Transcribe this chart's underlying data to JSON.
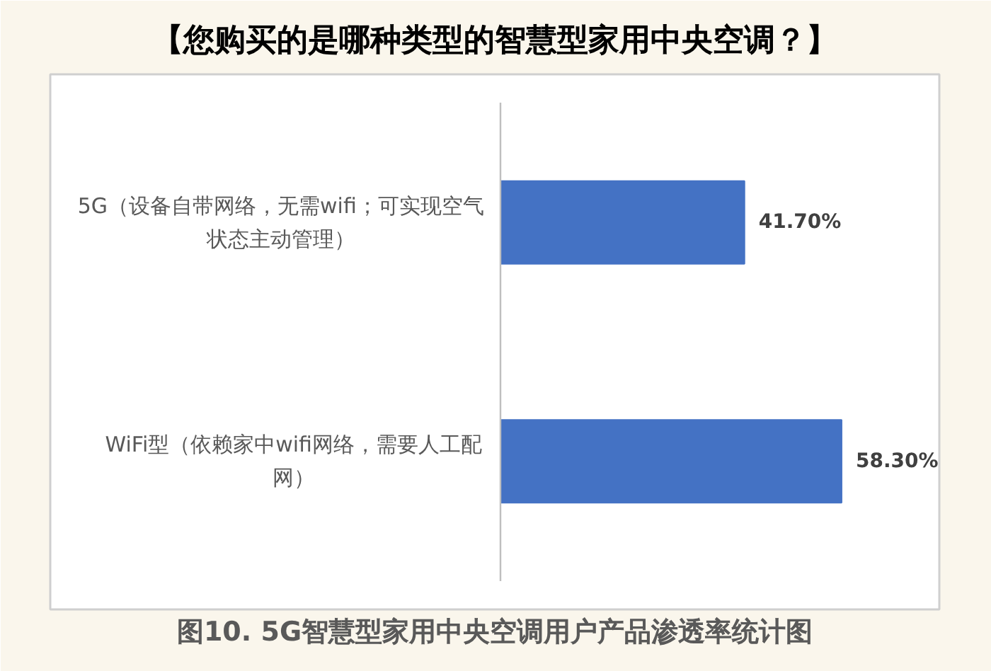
{
  "chart_data": {
    "type": "bar",
    "orientation": "horizontal",
    "title": "【您购买的是哪种类型的智慧型家用中央空调？】",
    "categories": [
      "5G（设备自带网络，无需wifi；可实现空气状态主动管理）",
      "WiFi型（依赖家中wifi网络，需要人工配网）"
    ],
    "values": [
      41.7,
      58.3
    ],
    "value_labels": [
      "41.70%",
      "58.30%"
    ],
    "color": "#4472c4",
    "xlim": [
      0,
      75
    ],
    "tick_labels": "y",
    "annotations": [
      "图10. 5G智慧型家用中央空调用户产品渗透率统计图"
    ]
  }
}
